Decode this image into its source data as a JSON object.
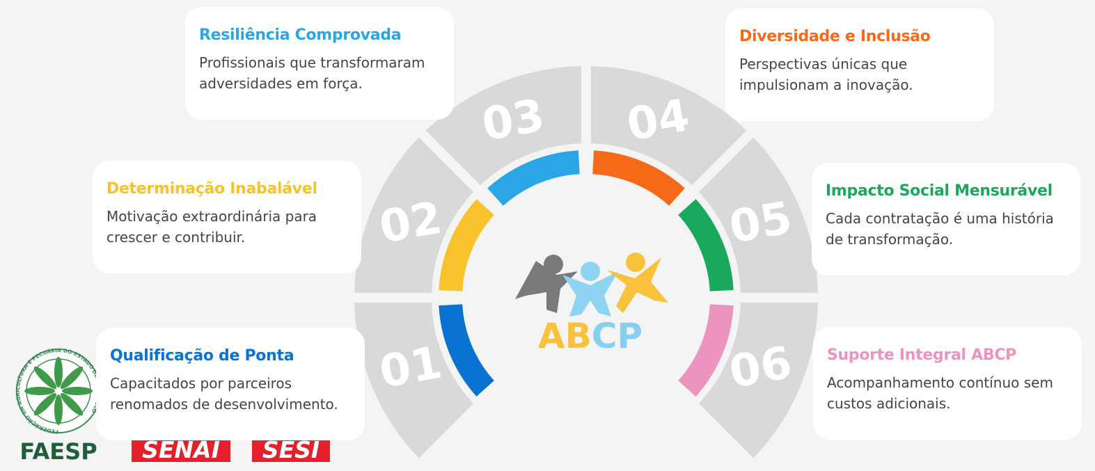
{
  "items": [
    {
      "number": "01",
      "title": "Qualificação de Ponta",
      "description": "Capacitados por parceiros renomados de desenvolvimento.",
      "color": "#0a72d1"
    },
    {
      "number": "02",
      "title": "Determinação Inabalável",
      "description": "Motivação extraordinária para crescer e contribuir.",
      "color": "#f7c22c"
    },
    {
      "number": "03",
      "title": "Resiliência Comprovada",
      "description": "Profissionais que transformaram adversidades em força.",
      "color": "#2aa6e6"
    },
    {
      "number": "04",
      "title": "Diversidade e Inclusão",
      "description": "Perspectivas únicas que impulsionam a inovação.",
      "color": "#f56a18"
    },
    {
      "number": "05",
      "title": "Impacto Social Mensurável",
      "description": "Cada contratação é uma história de transformação.",
      "color": "#1aa95c"
    },
    {
      "number": "06",
      "title": "Suporte Integral ABCP",
      "description": "Acompanhamento contínuo sem custos adicionais.",
      "color": "#ec93c0"
    }
  ],
  "center_logo": "ABCP",
  "logos": {
    "faesp": "FAESP",
    "faesp_ring": "FEDERAÇÃO DA AGRICULTURA E PECUÁRIA DO ESTADO DE SÃO PAULO",
    "senai": "SENAI",
    "sesi": "SESI"
  }
}
